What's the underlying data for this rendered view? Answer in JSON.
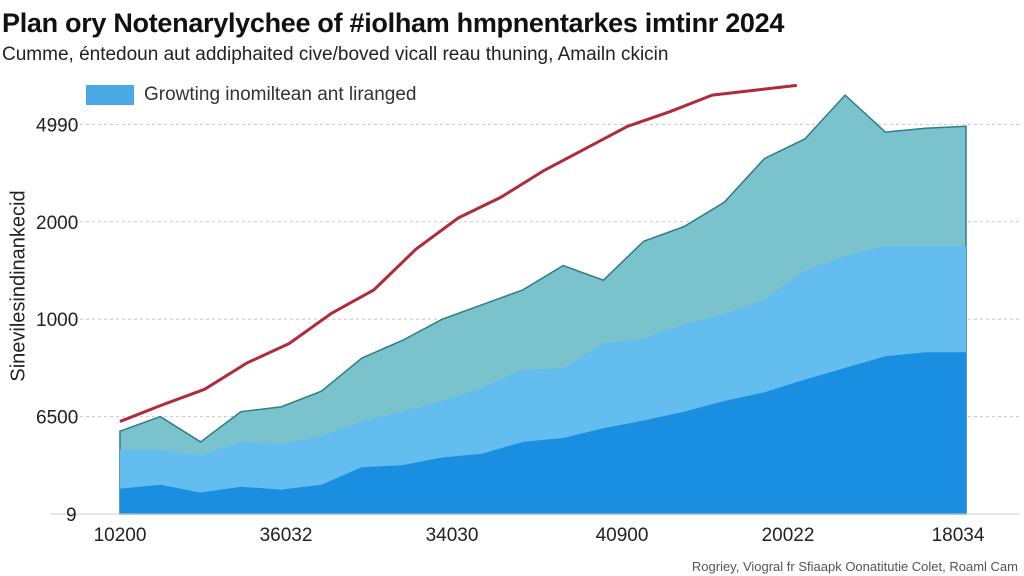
{
  "chart_data": {
    "type": "area",
    "title": "Plan ory Notenarylychee of #iolham hmpnentarkes imtinr 2024",
    "subtitle": "Cumme, éntedoun aut addiphaited cive/boved vicall reau thuning, Amailn ckicin",
    "ylabel": "Sinevilesindinankecid",
    "source": "Rogriey, Viogral fr Sfiaapk Oonatitutie Colet, Roaml Cam",
    "legend": [
      {
        "label": "Growting inomiltean ant liranged",
        "color": "#4aa8e6"
      }
    ],
    "x_ticks": [
      "10200",
      "36032",
      "34030",
      "40900",
      "20022",
      "18034"
    ],
    "y_ticks": [
      {
        "label": "9",
        "value": 0
      },
      {
        "label": "6500",
        "value": 1
      },
      {
        "label": "1000",
        "value": 2
      },
      {
        "label": "2000",
        "value": 3
      },
      {
        "label": "4990",
        "value": 4
      }
    ],
    "ylim": [
      0,
      4.25
    ],
    "grid": "horizontal dashed",
    "x": [
      0,
      1,
      2,
      3,
      4,
      5,
      6,
      7,
      8,
      9,
      10,
      11,
      12,
      13,
      14,
      15,
      16,
      17,
      18,
      19,
      20,
      21
    ],
    "series": [
      {
        "color": "#1a8ee0",
        "values": [
          0.26,
          0.3,
          0.22,
          0.28,
          0.25,
          0.3,
          0.48,
          0.5,
          0.58,
          0.62,
          0.74,
          0.78,
          0.88,
          0.96,
          1.05,
          1.16,
          1.25,
          1.38,
          1.5,
          1.62,
          1.66,
          1.66
        ]
      },
      {
        "color": "#63bdee",
        "values": [
          0.66,
          0.66,
          0.6,
          0.74,
          0.72,
          0.8,
          0.95,
          1.05,
          1.16,
          1.3,
          1.48,
          1.5,
          1.75,
          1.8,
          1.95,
          2.05,
          2.2,
          2.5,
          2.65,
          2.75,
          2.75,
          2.75
        ]
      },
      {
        "color": "#7bc3cc",
        "values": [
          0.85,
          1.0,
          0.74,
          1.05,
          1.1,
          1.26,
          1.6,
          1.78,
          2.0,
          2.15,
          2.3,
          2.55,
          2.4,
          2.8,
          2.95,
          3.2,
          3.65,
          3.85,
          4.3,
          3.92,
          3.96,
          3.98
        ]
      }
    ],
    "trend": {
      "color": "#b02a3a",
      "values": [
        0.95,
        1.12,
        1.28,
        1.55,
        1.75,
        2.06,
        2.3,
        2.72,
        3.04,
        3.25,
        3.52,
        3.75,
        3.98,
        4.13,
        4.3,
        4.35,
        4.4
      ]
    }
  }
}
